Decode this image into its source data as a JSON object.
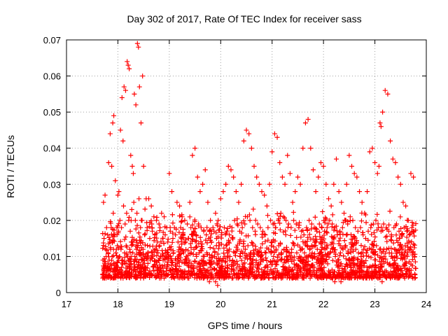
{
  "chart_data": {
    "type": "scatter",
    "title": "Day 302 of 2017, Rate Of TEC Index for receiver sass",
    "xlabel": "GPS time / hours",
    "ylabel": "ROTI / TECUs",
    "xlim": [
      17,
      24
    ],
    "ylim": [
      0,
      0.07
    ],
    "x_ticks": [
      "17",
      "18",
      "19",
      "20",
      "21",
      "22",
      "23",
      "24"
    ],
    "y_ticks": [
      "0",
      "0.01",
      "0.02",
      "0.03",
      "0.04",
      "0.05",
      "0.06",
      "0.07"
    ],
    "grid": true,
    "legend": "none",
    "marker": "+",
    "color": "#ff0000",
    "data_range_x": [
      17.7,
      23.8
    ],
    "series": [
      {
        "x": [
          17.72,
          17.75,
          17.78,
          17.82,
          17.85,
          17.88,
          17.9,
          17.92,
          17.95,
          17.98,
          18.0,
          18.02,
          18.05,
          18.08,
          18.1,
          18.12,
          18.15,
          18.18,
          18.2,
          18.22,
          18.25,
          18.28,
          18.3,
          18.32,
          18.35,
          18.38,
          18.4,
          18.42,
          18.45,
          18.48,
          18.5,
          18.55,
          18.6,
          18.65,
          18.7,
          18.75,
          18.8,
          18.85,
          18.9,
          18.95,
          19.0,
          19.05,
          19.1,
          19.15,
          19.2,
          19.25,
          19.3,
          19.35,
          19.4,
          19.45,
          19.5,
          19.55,
          19.6,
          19.65,
          19.7,
          19.75,
          19.8,
          19.85,
          19.9,
          19.95,
          20.0,
          20.05,
          20.1,
          20.15,
          20.2,
          20.25,
          20.3,
          20.35,
          20.4,
          20.45,
          20.5,
          20.55,
          20.6,
          20.65,
          20.7,
          20.75,
          20.8,
          20.85,
          20.9,
          20.95,
          21.0,
          21.05,
          21.1,
          21.15,
          21.2,
          21.25,
          21.3,
          21.35,
          21.4,
          21.45,
          21.5,
          21.55,
          21.6,
          21.65,
          21.7,
          21.75,
          21.8,
          21.85,
          21.9,
          21.95,
          22.0,
          22.05,
          22.1,
          22.15,
          22.2,
          22.25,
          22.3,
          22.35,
          22.4,
          22.45,
          22.5,
          22.55,
          22.6,
          22.65,
          22.7,
          22.75,
          22.8,
          22.85,
          22.9,
          22.95,
          23.0,
          23.05,
          23.08,
          23.1,
          23.12,
          23.15,
          23.2,
          23.25,
          23.3,
          23.35,
          23.4,
          23.45,
          23.5,
          23.55,
          23.6,
          23.65,
          23.7,
          23.75
        ],
        "y": [
          0.025,
          0.027,
          0.018,
          0.036,
          0.044,
          0.035,
          0.047,
          0.049,
          0.031,
          0.018,
          0.027,
          0.028,
          0.045,
          0.054,
          0.042,
          0.057,
          0.056,
          0.064,
          0.063,
          0.062,
          0.038,
          0.035,
          0.033,
          0.055,
          0.052,
          0.069,
          0.068,
          0.057,
          0.047,
          0.06,
          0.035,
          0.026,
          0.026,
          0.024,
          0.021,
          0.02,
          0.019,
          0.022,
          0.021,
          0.018,
          0.033,
          0.028,
          0.018,
          0.025,
          0.024,
          0.021,
          0.02,
          0.019,
          0.025,
          0.038,
          0.04,
          0.032,
          0.028,
          0.03,
          0.034,
          0.025,
          0.02,
          0.018,
          0.022,
          0.02,
          0.026,
          0.028,
          0.03,
          0.035,
          0.034,
          0.032,
          0.028,
          0.025,
          0.03,
          0.042,
          0.045,
          0.044,
          0.04,
          0.035,
          0.032,
          0.03,
          0.028,
          0.027,
          0.024,
          0.03,
          0.039,
          0.044,
          0.043,
          0.036,
          0.032,
          0.03,
          0.038,
          0.033,
          0.025,
          0.028,
          0.032,
          0.03,
          0.04,
          0.047,
          0.048,
          0.04,
          0.034,
          0.028,
          0.032,
          0.036,
          0.035,
          0.03,
          0.026,
          0.024,
          0.03,
          0.037,
          0.028,
          0.025,
          0.022,
          0.03,
          0.038,
          0.035,
          0.033,
          0.032,
          0.028,
          0.025,
          0.022,
          0.028,
          0.039,
          0.04,
          0.036,
          0.033,
          0.035,
          0.047,
          0.046,
          0.05,
          0.056,
          0.055,
          0.042,
          0.037,
          0.036,
          0.032,
          0.03,
          0.025,
          0.024,
          0.02,
          0.033,
          0.032
        ]
      },
      {
        "x": [
          17.73,
          17.76,
          17.8,
          17.84,
          17.87,
          17.91,
          17.94,
          17.97,
          18.01,
          18.04,
          18.07,
          18.11,
          18.14,
          18.17,
          18.21,
          18.24,
          18.27,
          18.31,
          18.34,
          18.37,
          18.41,
          18.44,
          18.47,
          18.52,
          18.57,
          18.62,
          18.67,
          18.72,
          18.77,
          18.82,
          18.87,
          18.92,
          18.97,
          19.02,
          19.07,
          19.12,
          19.17,
          19.22,
          19.27,
          19.32,
          19.37,
          19.42,
          19.47,
          19.52,
          19.57,
          19.62,
          19.67,
          19.72,
          19.77,
          19.82,
          19.87,
          19.92,
          19.97,
          20.02,
          20.07,
          20.12,
          20.17,
          20.22,
          20.27,
          20.32,
          20.37,
          20.42,
          20.47,
          20.52,
          20.57,
          20.62,
          20.67,
          20.72,
          20.77,
          20.82,
          20.87,
          20.92,
          20.97,
          21.02,
          21.07,
          21.12,
          21.17,
          21.22,
          21.27,
          21.32,
          21.37,
          21.42,
          21.47,
          21.52,
          21.57,
          21.62,
          21.67,
          21.72,
          21.77,
          21.82,
          21.87,
          21.92,
          21.97,
          22.02,
          22.07,
          22.12,
          22.17,
          22.22,
          22.27,
          22.32,
          22.37,
          22.42,
          22.47,
          22.52,
          22.57,
          22.62,
          22.67,
          22.72,
          22.77,
          22.82,
          22.87,
          22.92,
          22.97,
          23.02,
          23.07,
          23.12,
          23.17,
          23.22,
          23.27,
          23.32,
          23.37,
          23.42,
          23.47,
          23.52,
          23.57,
          23.62,
          23.67,
          23.72,
          23.76
        ],
        "y": [
          0.015,
          0.012,
          0.016,
          0.014,
          0.018,
          0.022,
          0.016,
          0.012,
          0.017,
          0.02,
          0.018,
          0.024,
          0.019,
          0.022,
          0.02,
          0.017,
          0.023,
          0.025,
          0.02,
          0.022,
          0.026,
          0.018,
          0.02,
          0.016,
          0.018,
          0.015,
          0.017,
          0.016,
          0.014,
          0.018,
          0.015,
          0.016,
          0.014,
          0.017,
          0.015,
          0.016,
          0.014,
          0.018,
          0.016,
          0.014,
          0.015,
          0.018,
          0.017,
          0.016,
          0.019,
          0.018,
          0.017,
          0.016,
          0.015,
          0.014,
          0.017,
          0.015,
          0.013,
          0.016,
          0.018,
          0.017,
          0.016,
          0.018,
          0.02,
          0.019,
          0.017,
          0.018,
          0.019,
          0.021,
          0.02,
          0.018,
          0.017,
          0.019,
          0.018,
          0.017,
          0.016,
          0.018,
          0.02,
          0.019,
          0.018,
          0.02,
          0.022,
          0.021,
          0.02,
          0.019,
          0.018,
          0.02,
          0.019,
          0.018,
          0.017,
          0.016,
          0.018,
          0.02,
          0.019,
          0.018,
          0.017,
          0.019,
          0.018,
          0.017,
          0.018,
          0.02,
          0.019,
          0.018,
          0.016,
          0.017,
          0.018,
          0.02,
          0.019,
          0.021,
          0.02,
          0.018,
          0.017,
          0.018,
          0.016,
          0.015,
          0.017,
          0.018,
          0.019,
          0.02,
          0.018,
          0.017,
          0.019,
          0.018,
          0.017,
          0.016,
          0.018,
          0.019,
          0.017,
          0.016,
          0.018,
          0.017,
          0.016,
          0.018,
          0.017
        ]
      },
      {
        "x": [
          17.71,
          17.74,
          17.77,
          17.79,
          17.81,
          17.83,
          17.86,
          17.89,
          17.93,
          17.96,
          17.99,
          18.03,
          18.06,
          18.09,
          18.13,
          18.16,
          18.19,
          18.23,
          18.26,
          18.29,
          18.33,
          18.36,
          18.39,
          18.43,
          18.46,
          18.49,
          18.53,
          18.58,
          18.63,
          18.68,
          18.73,
          18.78,
          18.83,
          18.88,
          18.93,
          18.98,
          19.03,
          19.08,
          19.13,
          19.18,
          19.23,
          19.28,
          19.33,
          19.38,
          19.43,
          19.48,
          19.53,
          19.58,
          19.63,
          19.68,
          19.73,
          19.78,
          19.83,
          19.88,
          19.93,
          19.98,
          20.03,
          20.08,
          20.13,
          20.18,
          20.23,
          20.28,
          20.33,
          20.38,
          20.43,
          20.48,
          20.53,
          20.58,
          20.63,
          20.68,
          20.73,
          20.78,
          20.83,
          20.88,
          20.93,
          20.98,
          21.03,
          21.08,
          21.13,
          21.18,
          21.23,
          21.28,
          21.33,
          21.38,
          21.43,
          21.48,
          21.53,
          21.58,
          21.63,
          21.68,
          21.73,
          21.78,
          21.83,
          21.88,
          21.93,
          21.98,
          22.03,
          22.08,
          22.13,
          22.18,
          22.23,
          22.28,
          22.33,
          22.38,
          22.43,
          22.48,
          22.53,
          22.58,
          22.63,
          22.68,
          22.73,
          22.78,
          22.83,
          22.88,
          22.93,
          22.98,
          23.03,
          23.09,
          23.13,
          23.18,
          23.23,
          23.28,
          23.33,
          23.38,
          23.43,
          23.48,
          23.53,
          23.58,
          23.63,
          23.68,
          23.73,
          23.77
        ],
        "y": [
          0.009,
          0.008,
          0.01,
          0.007,
          0.011,
          0.009,
          0.012,
          0.01,
          0.008,
          0.011,
          0.013,
          0.01,
          0.012,
          0.009,
          0.011,
          0.013,
          0.01,
          0.012,
          0.014,
          0.011,
          0.01,
          0.012,
          0.013,
          0.011,
          0.009,
          0.012,
          0.01,
          0.011,
          0.009,
          0.01,
          0.012,
          0.011,
          0.01,
          0.009,
          0.011,
          0.01,
          0.012,
          0.011,
          0.009,
          0.01,
          0.012,
          0.011,
          0.01,
          0.009,
          0.011,
          0.012,
          0.01,
          0.011,
          0.009,
          0.01,
          0.011,
          0.009,
          0.008,
          0.01,
          0.008,
          0.007,
          0.009,
          0.01,
          0.011,
          0.01,
          0.009,
          0.011,
          0.012,
          0.01,
          0.011,
          0.012,
          0.013,
          0.011,
          0.01,
          0.012,
          0.011,
          0.01,
          0.009,
          0.011,
          0.012,
          0.011,
          0.01,
          0.012,
          0.013,
          0.011,
          0.012,
          0.01,
          0.011,
          0.012,
          0.013,
          0.011,
          0.01,
          0.012,
          0.011,
          0.013,
          0.012,
          0.011,
          0.01,
          0.012,
          0.011,
          0.01,
          0.012,
          0.013,
          0.011,
          0.012,
          0.01,
          0.009,
          0.011,
          0.012,
          0.013,
          0.011,
          0.012,
          0.013,
          0.012,
          0.011,
          0.01,
          0.012,
          0.011,
          0.01,
          0.012,
          0.011,
          0.013,
          0.012,
          0.011,
          0.01,
          0.012,
          0.011,
          0.01,
          0.012,
          0.011,
          0.013,
          0.012,
          0.011,
          0.01,
          0.012,
          0.011,
          0.01
        ]
      },
      {
        "x": [
          17.7,
          17.74,
          17.78,
          17.82,
          17.86,
          17.9,
          17.94,
          17.98,
          18.02,
          18.06,
          18.1,
          18.14,
          18.18,
          18.22,
          18.26,
          18.3,
          18.34,
          18.38,
          18.42,
          18.46,
          18.5,
          18.54,
          18.58,
          18.62,
          18.66,
          18.7,
          18.74,
          18.78,
          18.82,
          18.86,
          18.9,
          18.94,
          18.98,
          19.02,
          19.06,
          19.1,
          19.14,
          19.18,
          19.22,
          19.26,
          19.3,
          19.34,
          19.38,
          19.42,
          19.46,
          19.5,
          19.54,
          19.58,
          19.62,
          19.66,
          19.7,
          19.74,
          19.78,
          19.82,
          19.86,
          19.9,
          19.94,
          19.98,
          20.02,
          20.06,
          20.1,
          20.14,
          20.18,
          20.22,
          20.26,
          20.3,
          20.34,
          20.38,
          20.42,
          20.46,
          20.5,
          20.54,
          20.58,
          20.62,
          20.66,
          20.7,
          20.74,
          20.78,
          20.82,
          20.86,
          20.9,
          20.94,
          20.98,
          21.02,
          21.06,
          21.1,
          21.14,
          21.18,
          21.22,
          21.26,
          21.3,
          21.34,
          21.38,
          21.42,
          21.46,
          21.5,
          21.54,
          21.58,
          21.62,
          21.66,
          21.7,
          21.74,
          21.78,
          21.82,
          21.86,
          21.9,
          21.94,
          21.98,
          22.02,
          22.06,
          22.1,
          22.14,
          22.18,
          22.22,
          22.26,
          22.3,
          22.34,
          22.38,
          22.42,
          22.46,
          22.5,
          22.54,
          22.58,
          22.62,
          22.66,
          22.7,
          22.74,
          22.78,
          22.82,
          22.86,
          22.9,
          22.94,
          22.98,
          23.02,
          23.06,
          23.1,
          23.14,
          23.18,
          23.22,
          23.26,
          23.3,
          23.34,
          23.38,
          23.42,
          23.46,
          23.5,
          23.54,
          23.58,
          23.62,
          23.66,
          23.7,
          23.74,
          23.78
        ],
        "y": [
          0.005,
          0.004,
          0.006,
          0.005,
          0.004,
          0.006,
          0.005,
          0.007,
          0.005,
          0.006,
          0.004,
          0.005,
          0.006,
          0.007,
          0.005,
          0.006,
          0.005,
          0.007,
          0.006,
          0.005,
          0.006,
          0.007,
          0.005,
          0.006,
          0.005,
          0.006,
          0.007,
          0.005,
          0.006,
          0.005,
          0.004,
          0.006,
          0.005,
          0.006,
          0.005,
          0.004,
          0.005,
          0.006,
          0.005,
          0.004,
          0.006,
          0.005,
          0.004,
          0.005,
          0.006,
          0.005,
          0.004,
          0.005,
          0.006,
          0.004,
          0.005,
          0.004,
          0.003,
          0.005,
          0.004,
          0.003,
          0.002,
          0.004,
          0.005,
          0.004,
          0.005,
          0.006,
          0.005,
          0.004,
          0.006,
          0.005,
          0.004,
          0.006,
          0.005,
          0.006,
          0.005,
          0.004,
          0.006,
          0.005,
          0.004,
          0.006,
          0.005,
          0.004,
          0.005,
          0.006,
          0.005,
          0.004,
          0.006,
          0.005,
          0.004,
          0.006,
          0.005,
          0.004,
          0.005,
          0.006,
          0.005,
          0.004,
          0.006,
          0.005,
          0.004,
          0.005,
          0.006,
          0.005,
          0.004,
          0.006,
          0.005,
          0.004,
          0.005,
          0.006,
          0.005,
          0.004,
          0.005,
          0.006,
          0.005,
          0.004,
          0.006,
          0.005,
          0.004,
          0.003,
          0.005,
          0.004,
          0.003,
          0.005,
          0.006,
          0.005,
          0.004,
          0.005,
          0.006,
          0.005,
          0.004,
          0.006,
          0.005,
          0.004,
          0.005,
          0.006,
          0.005,
          0.004,
          0.006,
          0.005,
          0.004,
          0.005,
          0.003,
          0.005,
          0.006,
          0.005,
          0.004,
          0.005,
          0.006,
          0.005,
          0.004,
          0.006,
          0.005,
          0.004,
          0.005,
          0.006,
          0.005,
          0.004,
          0.005
        ]
      }
    ]
  }
}
